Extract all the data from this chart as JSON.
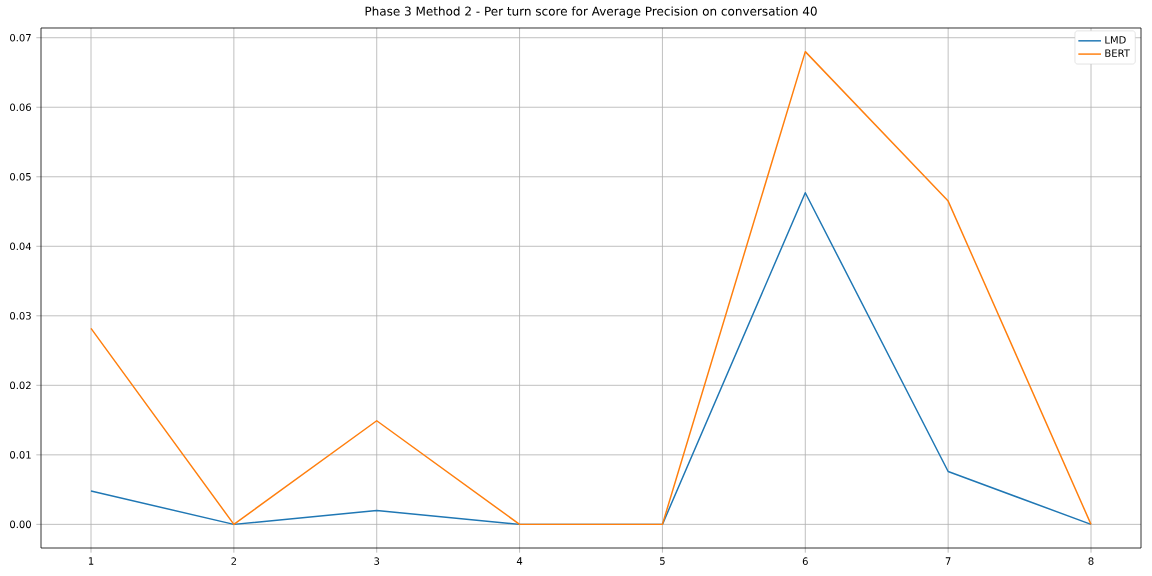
{
  "chart_data": {
    "type": "line",
    "title": "Phase 3 Method 2 - Per turn score for Average Precision on conversation 40",
    "x": [
      1,
      2,
      3,
      4,
      5,
      6,
      7,
      8
    ],
    "series": [
      {
        "name": "LMD",
        "color": "#1f77b4",
        "values": [
          0.0048,
          0,
          0.002,
          0,
          0,
          0.0477,
          0.0076,
          0
        ]
      },
      {
        "name": "BERT",
        "color": "#ff7f0e",
        "values": [
          0.0282,
          0,
          0.0149,
          0,
          0,
          0.068,
          0.0465,
          0
        ]
      }
    ],
    "xlim": [
      0.65,
      8.35
    ],
    "ylim": [
      -0.0034,
      0.0714
    ],
    "xticks": [
      1,
      2,
      3,
      4,
      5,
      6,
      7,
      8
    ],
    "yticks": [
      {
        "value": 0,
        "label": "0.00"
      },
      0.01,
      0.02,
      0.03,
      0.04,
      0.05,
      0.06,
      0.07
    ],
    "grid": true,
    "legend": "top right",
    "marker": "none",
    "line_style": "solid"
  }
}
